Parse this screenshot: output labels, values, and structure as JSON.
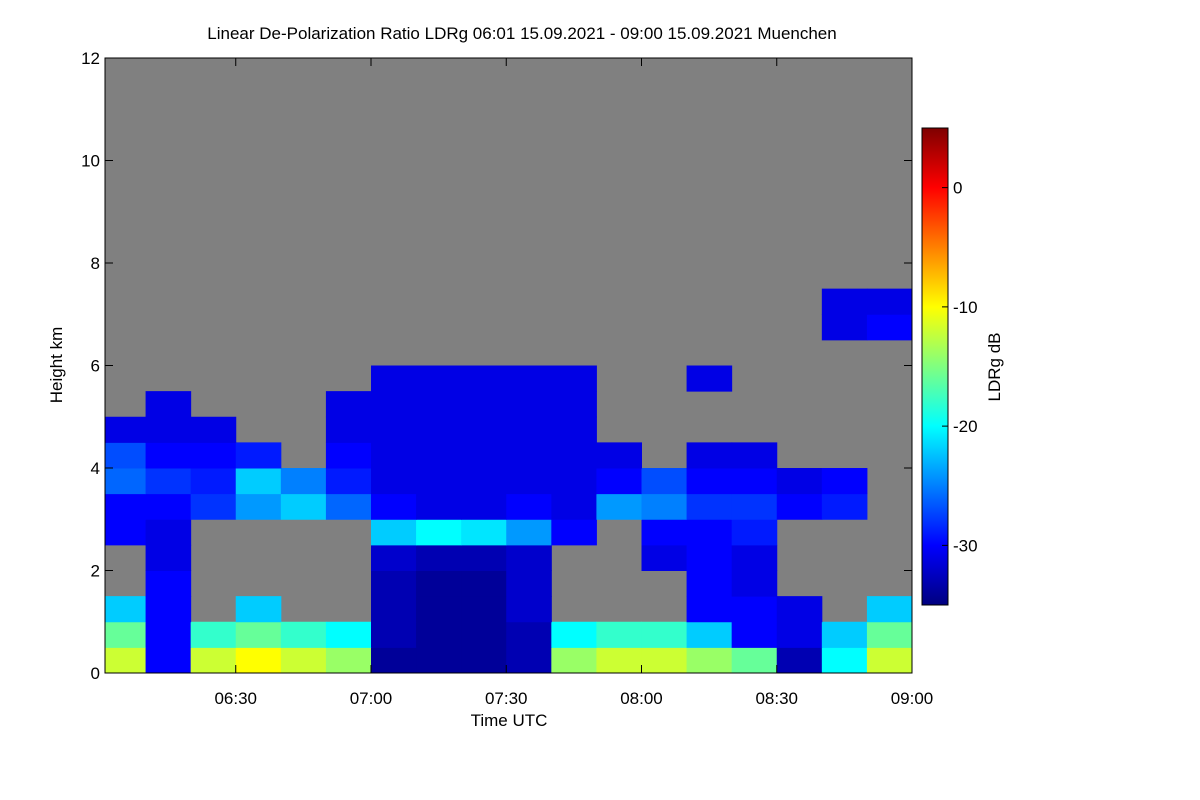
{
  "chart_data": {
    "type": "heatmap",
    "title": "Linear De-Polarization Ratio LDRg   06:01 15.09.2021 - 09:00 15.09.2021 Muenchen",
    "xlabel": "Time UTC",
    "ylabel": "Height km",
    "colorbar_label": "LDRg dB",
    "xlim": [
      361,
      540
    ],
    "xticks": [
      {
        "value": 390,
        "label": "06:30"
      },
      {
        "value": 420,
        "label": "07:00"
      },
      {
        "value": 450,
        "label": "07:30"
      },
      {
        "value": 480,
        "label": "08:00"
      },
      {
        "value": 510,
        "label": "08:30"
      },
      {
        "value": 540,
        "label": "09:00"
      }
    ],
    "ylim": [
      0,
      12
    ],
    "yticks": [
      0,
      2,
      4,
      6,
      8,
      10,
      12
    ],
    "zlim": [
      -35,
      5
    ],
    "zticks": [
      0,
      -10,
      -20,
      -30
    ],
    "colormap": [
      "#00007f",
      "#0000ff",
      "#0080ff",
      "#00ffff",
      "#80ff80",
      "#ffff00",
      "#ff8000",
      "#ff0000",
      "#7f0000"
    ],
    "null_color": "#808080",
    "xbins": [
      361,
      370,
      380,
      390,
      400,
      410,
      420,
      430,
      440,
      450,
      460,
      470,
      480,
      490,
      500,
      510,
      520,
      530,
      540
    ],
    "ybins": [
      0,
      0.5,
      1,
      1.5,
      2,
      2.5,
      3,
      3.5,
      4,
      4.5,
      5,
      5.5,
      6,
      6.5,
      7,
      7.5,
      8,
      8.5,
      9,
      9.5,
      10,
      10.5,
      11,
      11.5,
      12
    ],
    "z": [
      [
        -12,
        -30,
        -12,
        -10,
        -12,
        -14,
        -34,
        -34,
        -34,
        -33,
        -14,
        -12,
        -12,
        -14,
        -16,
        -33,
        -20,
        -12
      ],
      [
        -16,
        -30,
        -18,
        -16,
        -18,
        -20,
        -33,
        -34,
        -34,
        -33,
        -20,
        -18,
        -18,
        -22,
        -30,
        -31,
        -22,
        -16
      ],
      [
        -22,
        -30,
        null,
        -22,
        null,
        null,
        -33,
        -34,
        -34,
        -32,
        null,
        null,
        null,
        -30,
        -30,
        -31,
        null,
        -22
      ],
      [
        null,
        -30,
        null,
        null,
        null,
        null,
        -33,
        -34,
        -34,
        -32,
        null,
        null,
        null,
        -30,
        -31,
        null,
        null,
        null
      ],
      [
        null,
        -31,
        null,
        null,
        null,
        null,
        -32,
        -33,
        -33,
        -32,
        null,
        null,
        -31,
        -30,
        -31,
        null,
        null,
        null
      ],
      [
        -30,
        -31,
        null,
        null,
        null,
        null,
        -22,
        -20,
        -21,
        -24,
        -30,
        null,
        -30,
        -30,
        -29,
        null,
        null,
        null
      ],
      [
        -30,
        -30,
        -28,
        -24,
        -22,
        -26,
        -30,
        -31,
        -31,
        -30,
        -31,
        -24,
        -25,
        -28,
        -28,
        -30,
        -29,
        null
      ],
      [
        -26,
        -28,
        -29,
        -22,
        -25,
        -29,
        -31,
        -31,
        -31,
        -31,
        -31,
        -30,
        -27,
        -30,
        -30,
        -31,
        -30,
        null
      ],
      [
        -27,
        -30,
        -30,
        -29,
        null,
        -30,
        -31,
        -31,
        -31,
        -31,
        -31,
        -31,
        null,
        -31,
        -31,
        null,
        null,
        null
      ],
      [
        -31,
        -31,
        -31,
        null,
        null,
        -31,
        -31,
        -31,
        -31,
        -31,
        -31,
        null,
        null,
        null,
        null,
        null,
        null,
        null
      ],
      [
        null,
        -31,
        null,
        null,
        null,
        -31,
        -31,
        -31,
        -31,
        -31,
        -31,
        null,
        null,
        null,
        null,
        null,
        null,
        null
      ],
      [
        null,
        null,
        null,
        null,
        null,
        null,
        -31,
        -31,
        -31,
        -31,
        -31,
        null,
        null,
        -31,
        null,
        null,
        null,
        null
      ],
      [
        null,
        null,
        null,
        null,
        null,
        null,
        null,
        null,
        null,
        null,
        null,
        null,
        null,
        null,
        null,
        null,
        null,
        null
      ],
      [
        null,
        null,
        null,
        null,
        null,
        null,
        null,
        null,
        null,
        null,
        null,
        null,
        null,
        null,
        null,
        null,
        -31,
        -30
      ],
      [
        null,
        null,
        null,
        null,
        null,
        null,
        null,
        null,
        null,
        null,
        null,
        null,
        null,
        null,
        null,
        null,
        -31,
        -31
      ],
      [
        null,
        null,
        null,
        null,
        null,
        null,
        null,
        null,
        null,
        null,
        null,
        null,
        null,
        null,
        null,
        null,
        null,
        null
      ],
      [
        null,
        null,
        null,
        null,
        null,
        null,
        null,
        null,
        null,
        null,
        null,
        null,
        null,
        null,
        null,
        null,
        null,
        null
      ],
      [
        null,
        null,
        null,
        null,
        null,
        null,
        null,
        null,
        null,
        null,
        null,
        null,
        null,
        null,
        null,
        null,
        null,
        null
      ],
      [
        null,
        null,
        null,
        null,
        null,
        null,
        null,
        null,
        null,
        null,
        null,
        null,
        null,
        null,
        null,
        null,
        null,
        null
      ],
      [
        null,
        null,
        null,
        null,
        null,
        null,
        null,
        null,
        null,
        null,
        null,
        null,
        null,
        null,
        null,
        null,
        null,
        null
      ],
      [
        null,
        null,
        null,
        null,
        null,
        null,
        null,
        null,
        null,
        null,
        null,
        null,
        null,
        null,
        null,
        null,
        null,
        null
      ],
      [
        null,
        null,
        null,
        null,
        null,
        null,
        null,
        null,
        null,
        null,
        null,
        null,
        null,
        null,
        null,
        null,
        null,
        null
      ],
      [
        null,
        null,
        null,
        null,
        null,
        null,
        null,
        null,
        null,
        null,
        null,
        null,
        null,
        null,
        null,
        null,
        null,
        null
      ],
      [
        null,
        null,
        null,
        null,
        null,
        null,
        null,
        null,
        null,
        null,
        null,
        null,
        null,
        null,
        null,
        null,
        null,
        null
      ]
    ]
  }
}
